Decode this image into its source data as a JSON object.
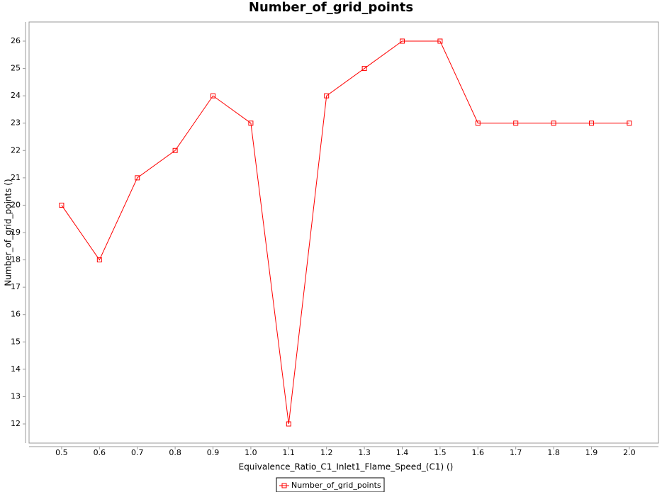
{
  "chart_data": {
    "type": "line",
    "title": "Number_of_grid_points",
    "x_label": "Equivalence_Ratio_C1_Inlet1_Flame_Speed_(C1) ()",
    "y_label": "Number_of_grid_points ()",
    "x": [
      0.5,
      0.6,
      0.7,
      0.8,
      0.9,
      1.0,
      1.1,
      1.2,
      1.3,
      1.4,
      1.5,
      1.6,
      1.7,
      1.8,
      1.9,
      2.0
    ],
    "series": [
      {
        "name": "Number_of_grid_points",
        "color": "#ff0000",
        "values": [
          20,
          18,
          21,
          22,
          24,
          23,
          12,
          24,
          25,
          26,
          26,
          23,
          23,
          23,
          23,
          23
        ]
      }
    ],
    "xlim": [
      0.414,
      2.077
    ],
    "ylim": [
      11.3,
      26.7
    ],
    "xticks": [
      0.5,
      0.6,
      0.7,
      0.8,
      0.9,
      {
        "value": 1,
        "label": "1.0"
      },
      1.1,
      1.2,
      1.3,
      1.4,
      1.5,
      1.6,
      1.7,
      1.8,
      1.9,
      {
        "value": 2,
        "label": "2.0"
      }
    ],
    "yticks": [
      12,
      13,
      14,
      15,
      16,
      17,
      18,
      19,
      20,
      21,
      22,
      23,
      24,
      25,
      26
    ],
    "grid": false,
    "legend": "bottom"
  }
}
